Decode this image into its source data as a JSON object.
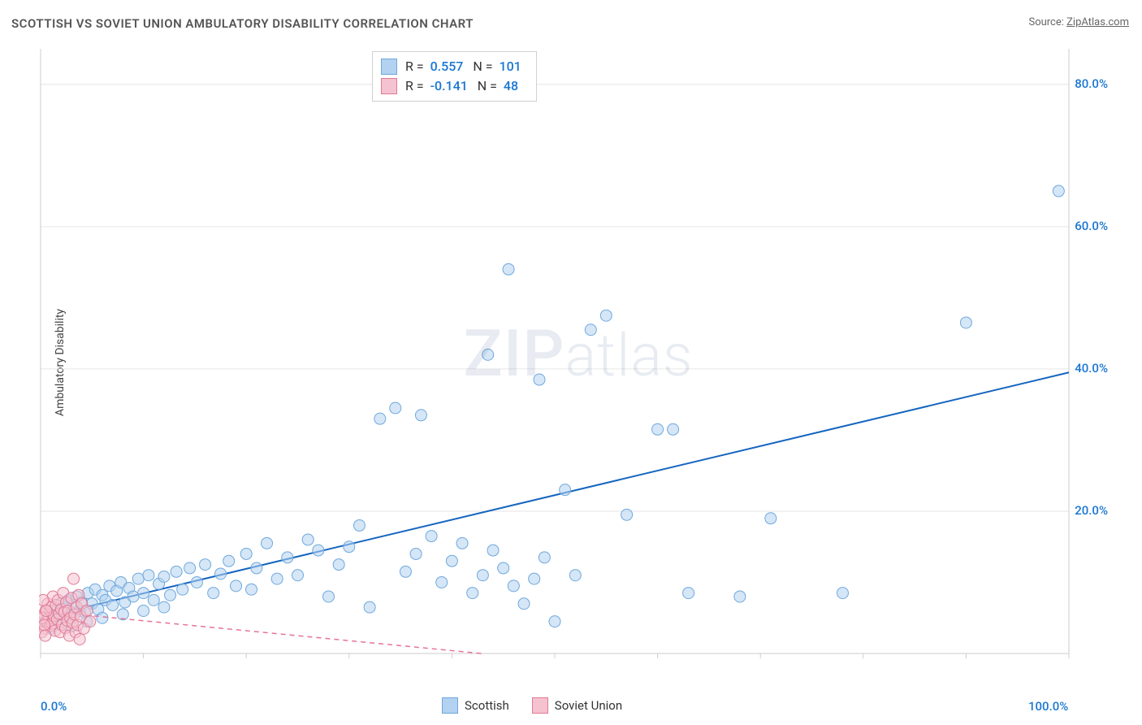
{
  "title": "SCOTTISH VS SOVIET UNION AMBULATORY DISABILITY CORRELATION CHART",
  "source_prefix": "Source: ",
  "source_name": "ZipAtlas.com",
  "yaxis_label": "Ambulatory Disability",
  "watermark_bold": "ZIP",
  "watermark_rest": "atlas",
  "chart": {
    "type": "scatter",
    "xlim": [
      0,
      100
    ],
    "ylim": [
      0,
      85
    ],
    "x_ticks": [
      0,
      10,
      20,
      30,
      40,
      50,
      60,
      70,
      80,
      90,
      100
    ],
    "x_tick_labels": [
      "0.0%",
      "",
      "",
      "",
      "",
      "",
      "",
      "",
      "",
      "",
      "100.0%"
    ],
    "y_ticks": [
      20,
      40,
      60,
      80
    ],
    "y_tick_labels": [
      "20.0%",
      "40.0%",
      "60.0%",
      "80.0%"
    ],
    "grid_color": "#e6e6e6",
    "axis_color": "#cccccc",
    "background": "#ffffff",
    "marker_radius": 7,
    "marker_opacity": 0.55,
    "series": [
      {
        "name": "Scottish",
        "fill": "#b3d1f0",
        "stroke": "#6fa8dc",
        "trend": {
          "color": "#1565c0",
          "width": 2,
          "dash": "none",
          "y_at_x0": 5.0,
          "y_at_xmax": 39.5
        },
        "R": "0.557",
        "N": "101",
        "points": [
          [
            0.5,
            4.5
          ],
          [
            0.8,
            5.5
          ],
          [
            1.0,
            6.0
          ],
          [
            1.2,
            4.8
          ],
          [
            1.5,
            5.2
          ],
          [
            1.7,
            6.3
          ],
          [
            2.0,
            7.0
          ],
          [
            2.2,
            5.0
          ],
          [
            2.5,
            6.5
          ],
          [
            2.7,
            7.5
          ],
          [
            3.0,
            5.5
          ],
          [
            3.2,
            6.8
          ],
          [
            3.5,
            8.0
          ],
          [
            3.8,
            6.0
          ],
          [
            4.0,
            7.2
          ],
          [
            4.3,
            5.8
          ],
          [
            4.6,
            8.5
          ],
          [
            5.0,
            7.0
          ],
          [
            5.3,
            9.0
          ],
          [
            5.6,
            6.2
          ],
          [
            6.0,
            8.2
          ],
          [
            6.3,
            7.5
          ],
          [
            6.7,
            9.5
          ],
          [
            7.0,
            6.8
          ],
          [
            7.4,
            8.8
          ],
          [
            7.8,
            10.0
          ],
          [
            8.2,
            7.2
          ],
          [
            8.6,
            9.2
          ],
          [
            9.0,
            8.0
          ],
          [
            9.5,
            10.5
          ],
          [
            10.0,
            8.5
          ],
          [
            10.5,
            11.0
          ],
          [
            11.0,
            7.5
          ],
          [
            11.5,
            9.8
          ],
          [
            12.0,
            10.8
          ],
          [
            12.6,
            8.2
          ],
          [
            13.2,
            11.5
          ],
          [
            13.8,
            9.0
          ],
          [
            14.5,
            12.0
          ],
          [
            15.2,
            10.0
          ],
          [
            16.0,
            12.5
          ],
          [
            16.8,
            8.5
          ],
          [
            17.5,
            11.2
          ],
          [
            18.3,
            13.0
          ],
          [
            19.0,
            9.5
          ],
          [
            20.0,
            14.0
          ],
          [
            20.5,
            9.0
          ],
          [
            21.0,
            12.0
          ],
          [
            22.0,
            15.5
          ],
          [
            23.0,
            10.5
          ],
          [
            24.0,
            13.5
          ],
          [
            25.0,
            11.0
          ],
          [
            26.0,
            16.0
          ],
          [
            27.0,
            14.5
          ],
          [
            28.0,
            8.0
          ],
          [
            29.0,
            12.5
          ],
          [
            30.0,
            15.0
          ],
          [
            31.0,
            18.0
          ],
          [
            32.0,
            6.5
          ],
          [
            33.0,
            33.0
          ],
          [
            34.5,
            34.5
          ],
          [
            35.5,
            11.5
          ],
          [
            36.5,
            14.0
          ],
          [
            37.0,
            33.5
          ],
          [
            38.0,
            16.5
          ],
          [
            39.0,
            10.0
          ],
          [
            40.0,
            13.0
          ],
          [
            41.0,
            15.5
          ],
          [
            42.0,
            8.5
          ],
          [
            43.0,
            11.0
          ],
          [
            44.0,
            14.5
          ],
          [
            43.5,
            42.0
          ],
          [
            45.0,
            12.0
          ],
          [
            45.5,
            54.0
          ],
          [
            46.0,
            9.5
          ],
          [
            47.0,
            7.0
          ],
          [
            48.0,
            10.5
          ],
          [
            48.5,
            38.5
          ],
          [
            49.0,
            13.5
          ],
          [
            50.0,
            4.5
          ],
          [
            51.0,
            23.0
          ],
          [
            52.0,
            11.0
          ],
          [
            53.5,
            45.5
          ],
          [
            55.0,
            47.5
          ],
          [
            57.0,
            19.5
          ],
          [
            60.0,
            31.5
          ],
          [
            61.5,
            31.5
          ],
          [
            63.0,
            8.5
          ],
          [
            68.0,
            8.0
          ],
          [
            71.0,
            19.0
          ],
          [
            78.0,
            8.5
          ],
          [
            90.0,
            46.5
          ],
          [
            99.0,
            65.0
          ],
          [
            1.0,
            3.5
          ],
          [
            2.0,
            4.0
          ],
          [
            3.0,
            3.8
          ],
          [
            4.5,
            4.5
          ],
          [
            6.0,
            5.0
          ],
          [
            8.0,
            5.5
          ],
          [
            10.0,
            6.0
          ],
          [
            12.0,
            6.5
          ]
        ]
      },
      {
        "name": "Soviet Union",
        "fill": "#f5c2cf",
        "stroke": "#e17a96",
        "trend": {
          "color": "#e57399",
          "width": 1.5,
          "dash": "6,5",
          "y_at_x0": 6.0,
          "y_at_xmax": -8.0
        },
        "R": "-0.141",
        "N": "48",
        "points": [
          [
            0.2,
            4.0
          ],
          [
            0.3,
            5.5
          ],
          [
            0.4,
            3.5
          ],
          [
            0.5,
            6.0
          ],
          [
            0.6,
            4.5
          ],
          [
            0.7,
            7.0
          ],
          [
            0.8,
            5.0
          ],
          [
            0.9,
            3.8
          ],
          [
            1.0,
            6.5
          ],
          [
            1.1,
            4.2
          ],
          [
            1.2,
            8.0
          ],
          [
            1.3,
            5.3
          ],
          [
            1.4,
            3.2
          ],
          [
            1.5,
            6.8
          ],
          [
            1.6,
            4.8
          ],
          [
            1.7,
            7.5
          ],
          [
            1.8,
            5.6
          ],
          [
            1.9,
            3.0
          ],
          [
            2.0,
            6.2
          ],
          [
            2.1,
            4.0
          ],
          [
            2.2,
            8.5
          ],
          [
            2.3,
            5.8
          ],
          [
            2.4,
            3.6
          ],
          [
            2.5,
            7.2
          ],
          [
            2.6,
            4.6
          ],
          [
            2.7,
            6.0
          ],
          [
            2.8,
            2.5
          ],
          [
            2.9,
            5.0
          ],
          [
            3.0,
            7.8
          ],
          [
            3.1,
            4.3
          ],
          [
            3.2,
            10.5
          ],
          [
            3.3,
            5.5
          ],
          [
            3.4,
            3.0
          ],
          [
            3.5,
            6.5
          ],
          [
            3.6,
            4.0
          ],
          [
            3.7,
            8.2
          ],
          [
            3.8,
            2.0
          ],
          [
            3.9,
            5.2
          ],
          [
            4.0,
            7.0
          ],
          [
            4.2,
            3.5
          ],
          [
            4.5,
            6.0
          ],
          [
            4.8,
            4.5
          ],
          [
            0.1,
            3.0
          ],
          [
            0.15,
            5.0
          ],
          [
            0.25,
            7.5
          ],
          [
            0.35,
            4.0
          ],
          [
            0.45,
            2.5
          ],
          [
            0.55,
            6.0
          ]
        ]
      }
    ]
  },
  "legend_top": [
    {
      "swatch_fill": "#b3d1f0",
      "swatch_stroke": "#6fa8dc",
      "R_label": "R =",
      "R": "0.557",
      "N_label": "N =",
      "N": "101"
    },
    {
      "swatch_fill": "#f5c2cf",
      "swatch_stroke": "#e17a96",
      "R_label": "R =",
      "R": "-0.141",
      "N_label": "N =",
      "N": "48"
    }
  ],
  "legend_bottom": [
    {
      "swatch_fill": "#b3d1f0",
      "swatch_stroke": "#6fa8dc",
      "label": "Scottish"
    },
    {
      "swatch_fill": "#f5c2cf",
      "swatch_stroke": "#e17a96",
      "label": "Soviet Union"
    }
  ]
}
